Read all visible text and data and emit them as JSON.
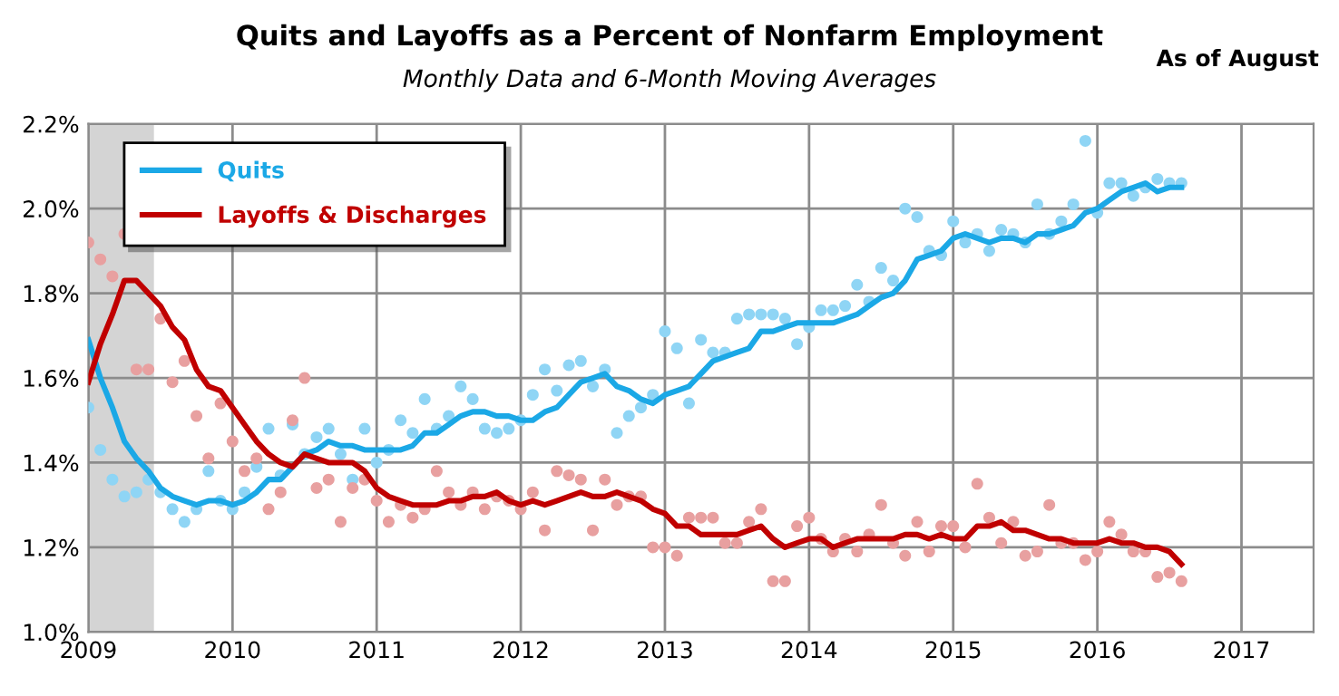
{
  "chart_data": {
    "type": "line",
    "title": "Quits and Layoffs as a Percent of Nonfarm Employment",
    "subtitle": "Monthly Data and 6-Month Moving Averages",
    "annotations": [
      "As of August"
    ],
    "x": [
      "2009-01",
      "2009-02",
      "2009-03",
      "2009-04",
      "2009-05",
      "2009-06",
      "2009-07",
      "2009-08",
      "2009-09",
      "2009-10",
      "2009-11",
      "2009-12",
      "2010-01",
      "2010-02",
      "2010-03",
      "2010-04",
      "2010-05",
      "2010-06",
      "2010-07",
      "2010-08",
      "2010-09",
      "2010-10",
      "2010-11",
      "2010-12",
      "2011-01",
      "2011-02",
      "2011-03",
      "2011-04",
      "2011-05",
      "2011-06",
      "2011-07",
      "2011-08",
      "2011-09",
      "2011-10",
      "2011-11",
      "2011-12",
      "2012-01",
      "2012-02",
      "2012-03",
      "2012-04",
      "2012-05",
      "2012-06",
      "2012-07",
      "2012-08",
      "2012-09",
      "2012-10",
      "2012-11",
      "2012-12",
      "2013-01",
      "2013-02",
      "2013-03",
      "2013-04",
      "2013-05",
      "2013-06",
      "2013-07",
      "2013-08",
      "2013-09",
      "2013-10",
      "2013-11",
      "2013-12",
      "2014-01",
      "2014-02",
      "2014-03",
      "2014-04",
      "2014-05",
      "2014-06",
      "2014-07",
      "2014-08",
      "2014-09",
      "2014-10",
      "2014-11",
      "2014-12",
      "2015-01",
      "2015-02",
      "2015-03",
      "2015-04",
      "2015-05",
      "2015-06",
      "2015-07",
      "2015-08",
      "2015-09",
      "2015-10",
      "2015-11",
      "2015-12",
      "2016-01",
      "2016-02",
      "2016-03",
      "2016-04",
      "2016-05",
      "2016-06",
      "2016-07",
      "2016-08"
    ],
    "series": [
      {
        "type": "scatter",
        "marker": "circle",
        "color": "#8fd5f5",
        "values": [
          1.53,
          1.43,
          1.36,
          1.32,
          1.33,
          1.36,
          1.33,
          1.29,
          1.26,
          1.29,
          1.38,
          1.31,
          1.29,
          1.33,
          1.39,
          1.48,
          1.37,
          1.49,
          1.42,
          1.46,
          1.48,
          1.42,
          1.36,
          1.48,
          1.4,
          1.43,
          1.5,
          1.47,
          1.55,
          1.48,
          1.51,
          1.58,
          1.55,
          1.48,
          1.47,
          1.48,
          1.5,
          1.56,
          1.62,
          1.57,
          1.63,
          1.64,
          1.58,
          1.62,
          1.47,
          1.51,
          1.53,
          1.56,
          1.71,
          1.67,
          1.54,
          1.69,
          1.66,
          1.66,
          1.74,
          1.75,
          1.75,
          1.75,
          1.74,
          1.68,
          1.72,
          1.76,
          1.76,
          1.77,
          1.82,
          1.78,
          1.86,
          1.83,
          2.0,
          1.98,
          1.9,
          1.89,
          1.97,
          1.92,
          1.94,
          1.9,
          1.95,
          1.94,
          1.92,
          2.01,
          1.94,
          1.97,
          2.01,
          2.16,
          1.99,
          2.06,
          2.06,
          2.03,
          2.05,
          2.07,
          2.06,
          2.06
        ]
      },
      {
        "type": "scatter",
        "marker": "circle",
        "color": "#e8a0a0",
        "values": [
          1.92,
          1.88,
          1.84,
          1.94,
          1.62,
          1.62,
          1.74,
          1.59,
          1.64,
          1.51,
          1.41,
          1.54,
          1.45,
          1.38,
          1.41,
          1.29,
          1.33,
          1.5,
          1.6,
          1.34,
          1.36,
          1.26,
          1.34,
          1.36,
          1.31,
          1.26,
          1.3,
          1.27,
          1.29,
          1.38,
          1.33,
          1.3,
          1.33,
          1.29,
          1.32,
          1.31,
          1.29,
          1.33,
          1.24,
          1.38,
          1.37,
          1.36,
          1.24,
          1.36,
          1.3,
          1.32,
          1.32,
          1.2,
          1.2,
          1.18,
          1.27,
          1.27,
          1.27,
          1.21,
          1.21,
          1.26,
          1.29,
          1.12,
          1.12,
          1.25,
          1.27,
          1.22,
          1.19,
          1.22,
          1.19,
          1.23,
          1.3,
          1.21,
          1.18,
          1.26,
          1.19,
          1.25,
          1.25,
          1.2,
          1.35,
          1.27,
          1.21,
          1.26,
          1.18,
          1.19,
          1.3,
          1.21,
          1.21,
          1.17,
          1.19,
          1.26,
          1.23,
          1.19,
          1.19,
          1.13,
          1.14,
          1.12
        ]
      },
      {
        "name": "Quits",
        "color": "#1ba8e6",
        "values": [
          1.69,
          1.6,
          1.53,
          1.45,
          1.41,
          1.38,
          1.34,
          1.32,
          1.31,
          1.3,
          1.31,
          1.31,
          1.3,
          1.31,
          1.33,
          1.36,
          1.36,
          1.39,
          1.42,
          1.43,
          1.45,
          1.44,
          1.44,
          1.43,
          1.43,
          1.43,
          1.43,
          1.44,
          1.47,
          1.47,
          1.49,
          1.51,
          1.52,
          1.52,
          1.51,
          1.51,
          1.5,
          1.5,
          1.52,
          1.53,
          1.56,
          1.59,
          1.6,
          1.61,
          1.58,
          1.57,
          1.55,
          1.54,
          1.56,
          1.57,
          1.58,
          1.61,
          1.64,
          1.65,
          1.66,
          1.67,
          1.71,
          1.71,
          1.72,
          1.73,
          1.73,
          1.73,
          1.73,
          1.74,
          1.75,
          1.77,
          1.79,
          1.8,
          1.83,
          1.88,
          1.89,
          1.9,
          1.93,
          1.94,
          1.93,
          1.92,
          1.93,
          1.93,
          1.92,
          1.94,
          1.94,
          1.95,
          1.96,
          1.99,
          2.0,
          2.02,
          2.04,
          2.05,
          2.06,
          2.04,
          2.05,
          2.05
        ]
      },
      {
        "name": "Layoffs & Discharges",
        "color": "#c00000",
        "values": [
          1.59,
          1.68,
          1.75,
          1.83,
          1.83,
          1.8,
          1.77,
          1.72,
          1.69,
          1.62,
          1.58,
          1.57,
          1.53,
          1.49,
          1.45,
          1.42,
          1.4,
          1.39,
          1.42,
          1.41,
          1.4,
          1.4,
          1.4,
          1.38,
          1.34,
          1.32,
          1.31,
          1.3,
          1.3,
          1.3,
          1.31,
          1.31,
          1.32,
          1.32,
          1.33,
          1.31,
          1.3,
          1.31,
          1.3,
          1.31,
          1.32,
          1.33,
          1.32,
          1.32,
          1.33,
          1.32,
          1.31,
          1.29,
          1.28,
          1.25,
          1.25,
          1.23,
          1.23,
          1.23,
          1.23,
          1.24,
          1.25,
          1.22,
          1.2,
          1.21,
          1.22,
          1.22,
          1.2,
          1.21,
          1.22,
          1.22,
          1.22,
          1.22,
          1.23,
          1.23,
          1.22,
          1.23,
          1.22,
          1.22,
          1.25,
          1.25,
          1.26,
          1.24,
          1.24,
          1.23,
          1.22,
          1.22,
          1.21,
          1.21,
          1.21,
          1.22,
          1.21,
          1.21,
          1.2,
          1.2,
          1.19,
          1.16
        ]
      }
    ],
    "bands": [
      {
        "axis": "x",
        "from": "2009-01-01",
        "to": "2009-06-15",
        "color": "#d4d4d4"
      }
    ],
    "xlim": [
      "2009-01-01",
      "2017-07-01"
    ],
    "xticks": [
      "2009",
      "2010",
      "2011",
      "2012",
      "2013",
      "2014",
      "2015",
      "2016",
      "2017"
    ],
    "ylim": [
      1.0,
      2.2
    ],
    "yticks": [
      {
        "value": 1.0,
        "label": "1.0%"
      },
      {
        "value": 1.2,
        "label": "1.2%"
      },
      {
        "value": 1.4,
        "label": "1.4%"
      },
      {
        "value": 1.6,
        "label": "1.6%"
      },
      {
        "value": 1.8,
        "label": "1.8%"
      },
      {
        "value": 2.0,
        "label": "2.0%"
      },
      {
        "value": 2.2,
        "label": "2.2%"
      }
    ],
    "grid": true,
    "legend": "top left"
  }
}
